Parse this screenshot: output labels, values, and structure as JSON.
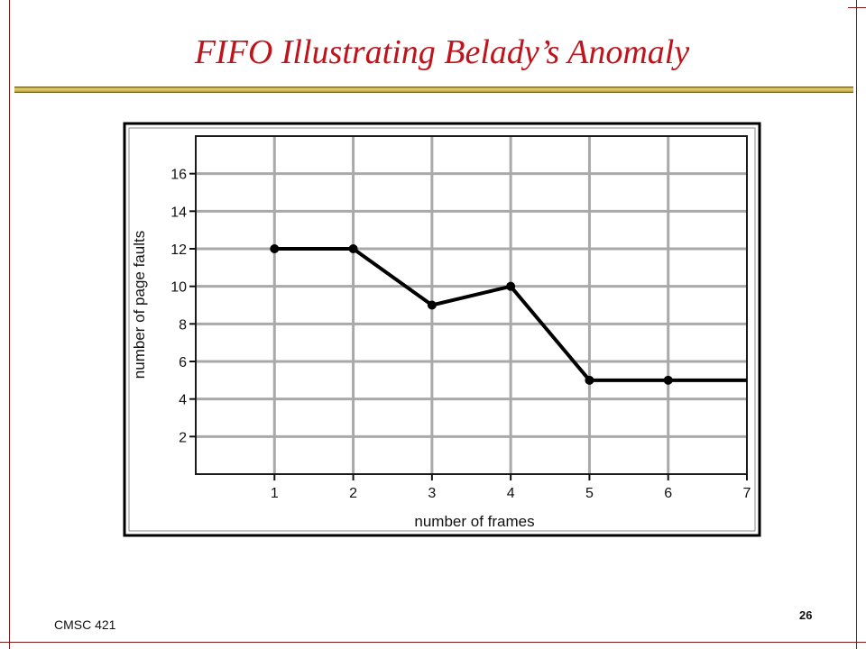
{
  "slide": {
    "title": "FIFO Illustrating Belady’s Anomaly",
    "course": "CMSC 421",
    "page_number": "26",
    "title_color": "#c0141c",
    "border_color": "#7a1a1a",
    "rule_color": "#c8b040"
  },
  "chart_data": {
    "type": "line",
    "title": "",
    "xlabel": "number of frames",
    "ylabel": "number of page faults",
    "x_ticks": [
      1,
      2,
      3,
      4,
      5,
      6,
      7
    ],
    "y_ticks": [
      2,
      4,
      6,
      8,
      10,
      12,
      14,
      16
    ],
    "xlim": [
      0,
      7
    ],
    "ylim": [
      0,
      18
    ],
    "grid": true,
    "series": [
      {
        "x": [
          1,
          2,
          3,
          4,
          5,
          6,
          7
        ],
        "y": [
          12,
          12,
          9,
          10,
          5,
          5,
          5
        ],
        "markers": [
          true,
          true,
          true,
          true,
          true,
          true,
          false
        ]
      }
    ]
  }
}
